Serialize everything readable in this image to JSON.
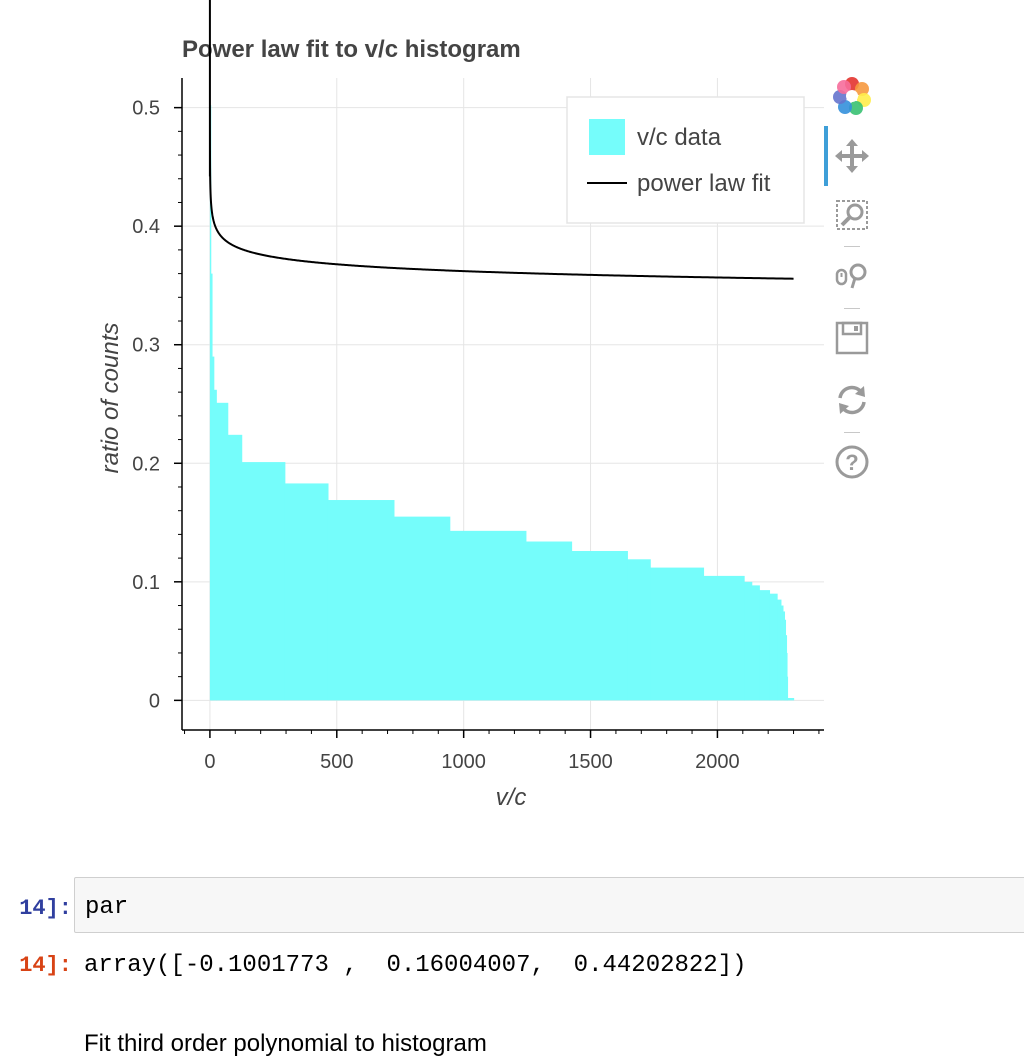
{
  "chart_data": {
    "type": "bar",
    "title": "Power law fit to v/c histogram",
    "xlabel": "v/c",
    "ylabel": "ratio of counts",
    "xlim": [
      -110,
      2420
    ],
    "ylim": [
      -0.025,
      0.525
    ],
    "x_ticks": [
      0,
      500,
      1000,
      1500,
      2000
    ],
    "y_ticks": [
      0,
      0.1,
      0.2,
      0.3,
      0.4,
      0.5
    ],
    "y_tick_labels": [
      "0",
      "0.1",
      "0.2",
      "0.3",
      "0.4",
      "0.5"
    ],
    "grid": true,
    "legend_position": "top-right",
    "series": [
      {
        "name": "v/c data",
        "kind": "step-bar",
        "color": "#75fdfb",
        "bins": [
          {
            "x0": 0,
            "x1": 3,
            "y": 0.502
          },
          {
            "x0": 3,
            "x1": 8,
            "y": 0.36
          },
          {
            "x0": 8,
            "x1": 15,
            "y": 0.29
          },
          {
            "x0": 15,
            "x1": 25,
            "y": 0.262
          },
          {
            "x0": 25,
            "x1": 70,
            "y": 0.251
          },
          {
            "x0": 70,
            "x1": 125,
            "y": 0.224
          },
          {
            "x0": 125,
            "x1": 295,
            "y": 0.201
          },
          {
            "x0": 295,
            "x1": 465,
            "y": 0.183
          },
          {
            "x0": 465,
            "x1": 725,
            "y": 0.169
          },
          {
            "x0": 725,
            "x1": 945,
            "y": 0.155
          },
          {
            "x0": 945,
            "x1": 1245,
            "y": 0.143
          },
          {
            "x0": 1245,
            "x1": 1425,
            "y": 0.134
          },
          {
            "x0": 1425,
            "x1": 1645,
            "y": 0.126
          },
          {
            "x0": 1645,
            "x1": 1735,
            "y": 0.119
          },
          {
            "x0": 1735,
            "x1": 1945,
            "y": 0.112
          },
          {
            "x0": 1945,
            "x1": 2105,
            "y": 0.105
          },
          {
            "x0": 2105,
            "x1": 2135,
            "y": 0.1
          },
          {
            "x0": 2135,
            "x1": 2165,
            "y": 0.097
          },
          {
            "x0": 2165,
            "x1": 2205,
            "y": 0.093
          },
          {
            "x0": 2205,
            "x1": 2235,
            "y": 0.09
          },
          {
            "x0": 2235,
            "x1": 2250,
            "y": 0.085
          },
          {
            "x0": 2250,
            "x1": 2258,
            "y": 0.08
          },
          {
            "x0": 2258,
            "x1": 2264,
            "y": 0.075
          },
          {
            "x0": 2264,
            "x1": 2268,
            "y": 0.068
          },
          {
            "x0": 2268,
            "x1": 2272,
            "y": 0.055
          },
          {
            "x0": 2272,
            "x1": 2274,
            "y": 0.04
          },
          {
            "x0": 2274,
            "x1": 2276,
            "y": 0.02
          },
          {
            "x0": 2276,
            "x1": 2300,
            "y": 0.002
          }
        ]
      },
      {
        "name": "power law fit",
        "kind": "line",
        "color": "#000000",
        "parameters": [
          -0.1001773,
          0.16004007,
          0.44202822
        ],
        "x_range": [
          0,
          2300
        ]
      }
    ]
  },
  "cells": [
    {
      "prompt": "14]:",
      "code": "par"
    },
    {
      "prompt": "14]:",
      "code": "array([-0.1001773 ,  0.16004007,  0.44202822])"
    }
  ],
  "markdown_text": "Fit third order polynomial to histogram",
  "toolbar": {
    "icons": [
      "bokeh-logo-icon",
      "pan-icon",
      "box-zoom-icon",
      "wheel-zoom-icon",
      "save-icon",
      "reset-icon",
      "help-icon"
    ],
    "active_color": "#3e9fd8"
  }
}
